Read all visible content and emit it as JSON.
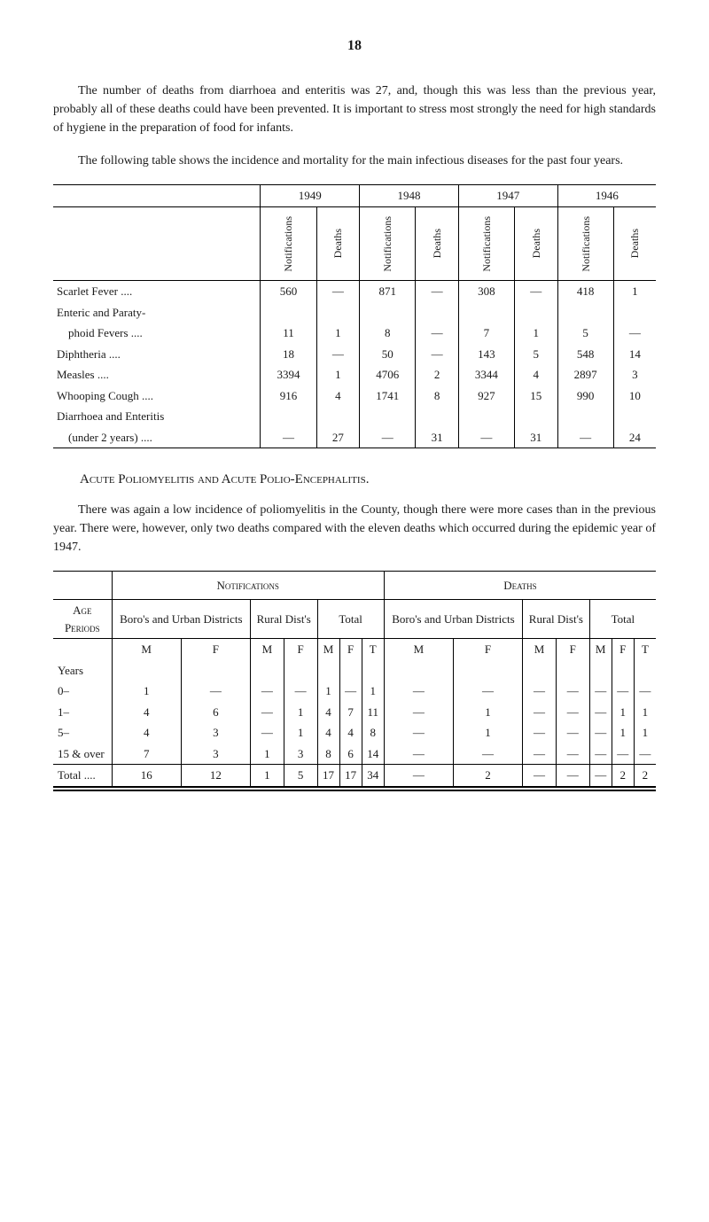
{
  "page_number": "18",
  "paragraphs": {
    "p1": "The number of deaths from diarrhoea and enteritis was 27, and, though this was less than the previous year, probably all of these deaths could have been prevented. It is important to stress most strongly the need for high standards of hygiene in the prep­aration of food for infants.",
    "p2": "The following table shows the incidence and mortality for the main infectious diseases for the past four years."
  },
  "table1": {
    "years": [
      "1949",
      "1948",
      "1947",
      "1946"
    ],
    "column_labels": {
      "notifications": "Notifications",
      "deaths": "Deaths"
    },
    "rows": [
      {
        "label": "Scarlet Fever ....",
        "cells": [
          "560",
          "—",
          "871",
          "—",
          "308",
          "—",
          "418",
          "1"
        ]
      },
      {
        "label": "Enteric and Paraty-",
        "cells": [
          "",
          "",
          "",
          "",
          "",
          "",
          "",
          ""
        ]
      },
      {
        "label": "    phoid Fevers ....",
        "cells": [
          "11",
          "1",
          "8",
          "—",
          "7",
          "1",
          "5",
          "—"
        ]
      },
      {
        "label": "Diphtheria ....",
        "cells": [
          "18",
          "—",
          "50",
          "—",
          "143",
          "5",
          "548",
          "14"
        ]
      },
      {
        "label": "Measles ....",
        "cells": [
          "3394",
          "1",
          "4706",
          "2",
          "3344",
          "4",
          "2897",
          "3"
        ]
      },
      {
        "label": "Whooping Cough ....",
        "cells": [
          "916",
          "4",
          "1741",
          "8",
          "927",
          "15",
          "990",
          "10"
        ]
      },
      {
        "label": "Diarrhoea and Enteritis",
        "cells": [
          "",
          "",
          "",
          "",
          "",
          "",
          "",
          ""
        ]
      },
      {
        "label": "    (under 2 years) ....",
        "cells": [
          "—",
          "27",
          "—",
          "31",
          "—",
          "31",
          "—",
          "24"
        ]
      }
    ]
  },
  "section_heading": "Acute Poliomyelitis and Acute Polio-Encephalitis.",
  "paragraphs2": {
    "p3": "There was again a low incidence of poliomyelitis in the County, though there were more cases than in the previous year. There were, however, only two deaths compared with the eleven deaths which occurred during the epidemic year of 1947."
  },
  "table2": {
    "top_headers": {
      "notifications": "Notifications",
      "deaths": "Deaths"
    },
    "sub_headers": {
      "boro": "Boro's and Urban Districts",
      "rural": "Rural Dist's",
      "total": "Total"
    },
    "row_header": {
      "age": "Age",
      "periods": "Periods"
    },
    "mft": {
      "m": "M",
      "f": "F",
      "t": "T"
    },
    "years_label": "Years",
    "rows": [
      {
        "label": "0–",
        "cells": [
          "1",
          "—",
          "—",
          "—",
          "1",
          "—",
          "1",
          "—",
          "—",
          "—",
          "—",
          "—",
          "—",
          "—"
        ]
      },
      {
        "label": "1–",
        "cells": [
          "4",
          "6",
          "—",
          "1",
          "4",
          "7",
          "11",
          "—",
          "1",
          "—",
          "—",
          "—",
          "1",
          "1"
        ]
      },
      {
        "label": "5–",
        "cells": [
          "4",
          "3",
          "—",
          "1",
          "4",
          "4",
          "8",
          "—",
          "1",
          "—",
          "—",
          "—",
          "1",
          "1"
        ]
      },
      {
        "label": "15 & over",
        "cells": [
          "7",
          "3",
          "1",
          "3",
          "8",
          "6",
          "14",
          "—",
          "—",
          "—",
          "—",
          "—",
          "—",
          "—"
        ]
      }
    ],
    "total_label": "Total ....",
    "total_row": [
      "16",
      "12",
      "1",
      "5",
      "17",
      "17",
      "34",
      "—",
      "2",
      "—",
      "—",
      "—",
      "2",
      "2"
    ]
  }
}
